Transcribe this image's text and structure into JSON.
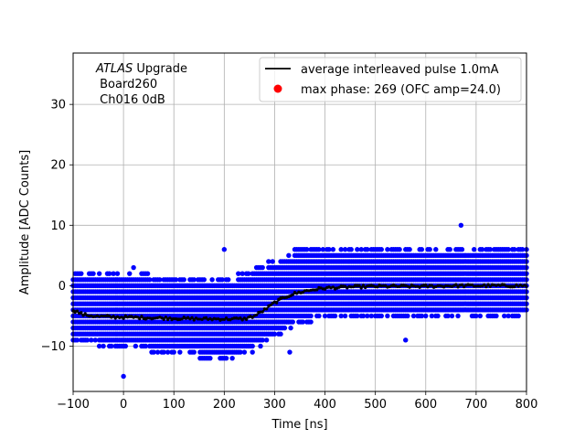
{
  "chart_data": {
    "type": "scatter",
    "xlabel": "Time [ns]",
    "ylabel": "Amplitude [ADC Counts]",
    "xlim": [
      -100,
      800
    ],
    "ylim": [
      -17.5,
      38.5
    ],
    "xticks": [
      -100,
      0,
      100,
      200,
      300,
      400,
      500,
      600,
      700,
      800
    ],
    "xtick_labels": [
      "−100",
      "0",
      "100",
      "200",
      "300",
      "400",
      "500",
      "600",
      "700",
      "800"
    ],
    "yticks": [
      -10,
      0,
      10,
      20,
      30
    ],
    "ytick_labels": [
      "−10",
      "0",
      "10",
      "20",
      "30"
    ],
    "grid": true,
    "annotation": {
      "line1_italic": "ATLAS",
      "line1_rest": " Upgrade",
      "line2": " Board260",
      "line3": " Ch016 0dB"
    },
    "legend": {
      "position": "upper-right",
      "entries": [
        {
          "label": "average interleaved pulse 1.0mA",
          "marker": "line",
          "color": "#000000"
        },
        {
          "label": "max phase: 269 (OFC amp=24.0)",
          "marker": "dot",
          "color": "#ff0000"
        }
      ]
    },
    "series": [
      {
        "name": "samples",
        "kind": "scatter",
        "color": "#0000ff",
        "x_start": -100,
        "x_end": 800,
        "x_step": 4,
        "band": [
          {
            "x": -100,
            "min": -9,
            "max": 2
          },
          {
            "x": 0,
            "min": -10,
            "max": 2
          },
          {
            "x": 100,
            "min": -11,
            "max": 1
          },
          {
            "x": 200,
            "min": -12,
            "max": 1
          },
          {
            "x": 250,
            "min": -11,
            "max": 2
          },
          {
            "x": 300,
            "min": -8,
            "max": 4
          },
          {
            "x": 350,
            "min": -6,
            "max": 6
          },
          {
            "x": 400,
            "min": -5,
            "max": 6
          },
          {
            "x": 500,
            "min": -5,
            "max": 6
          },
          {
            "x": 600,
            "min": -5,
            "max": 6
          },
          {
            "x": 700,
            "min": -5,
            "max": 6
          },
          {
            "x": 800,
            "min": -5,
            "max": 6
          }
        ],
        "outliers": [
          {
            "x": 0,
            "y": -15
          },
          {
            "x": 200,
            "y": 6
          },
          {
            "x": 670,
            "y": 10
          },
          {
            "x": 20,
            "y": 3
          },
          {
            "x": 560,
            "y": -9
          },
          {
            "x": 330,
            "y": -11
          }
        ]
      },
      {
        "name": "average interleaved pulse 1.0mA",
        "kind": "line",
        "color": "#000000",
        "x": [
          -100,
          -80,
          -50,
          0,
          50,
          100,
          150,
          200,
          240,
          260,
          280,
          300,
          320,
          340,
          360,
          380,
          400,
          450,
          500,
          550,
          600,
          650,
          700,
          750,
          800
        ],
        "y": [
          -4.0,
          -4.8,
          -5.1,
          -5.2,
          -5.3,
          -5.4,
          -5.5,
          -5.5,
          -5.5,
          -5.0,
          -4.0,
          -2.8,
          -1.9,
          -1.3,
          -0.9,
          -0.6,
          -0.4,
          -0.2,
          -0.1,
          -0.1,
          -0.1,
          0.0,
          0.0,
          0.0,
          0.0
        ]
      }
    ]
  }
}
